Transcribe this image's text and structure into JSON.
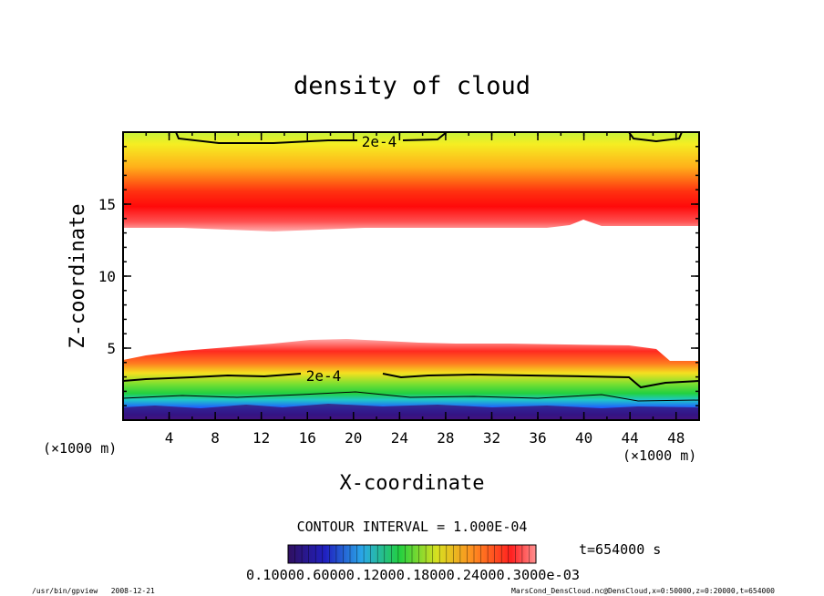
{
  "chart_data": {
    "type": "contour",
    "title": "density of cloud",
    "xlabel": "X-coordinate",
    "ylabel": "Z-coordinate",
    "x_unit_left": "(×1000 m)",
    "x_unit_right": "(×1000 m)",
    "xlim": [
      0,
      50
    ],
    "ylim": [
      0,
      20
    ],
    "xticks": [
      4,
      8,
      12,
      16,
      20,
      24,
      28,
      32,
      36,
      40,
      44,
      48
    ],
    "yticks": [
      5,
      10,
      15
    ],
    "contour_label": "2e-4",
    "contour_interval_text": "CONTOUR INTERVAL = 1.000E-04",
    "time_text": "t=654000 s",
    "colorbar_labels_text": "0.10000.60000.12000.18000.24000.3000e-03",
    "colorbar_values": [
      "0.1000e-04",
      "0.6000e-04",
      "0.1200e-03",
      "0.1800e-03",
      "0.2400e-03",
      "0.3000e-03"
    ],
    "colors": {
      "low": "#5a1a8c",
      "mid_low": "#1f5cff",
      "mid": "#2bd23a",
      "mid_high": "#f5e61e",
      "high": "#ff0a0a"
    }
  },
  "footer": {
    "left": "/usr/bin/gpview   2008-12-21",
    "right": "MarsCond_DensCloud.nc@DensCloud,x=0:50000,z=0:20000,t=654000"
  }
}
